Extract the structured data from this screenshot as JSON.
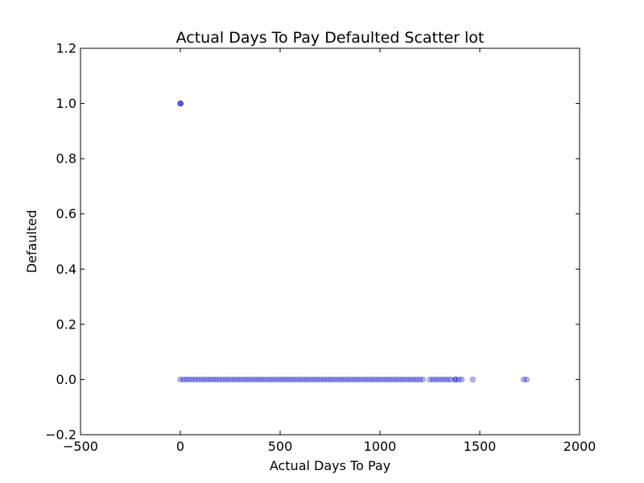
{
  "chart_data": {
    "type": "scatter",
    "title": "Actual Days To Pay Defaulted Scatter lot",
    "xlabel": "Actual Days To Pay",
    "ylabel": "Defaulted",
    "xlim": [
      -500,
      2000
    ],
    "ylim": [
      -0.2,
      1.2
    ],
    "xticks": [
      -500,
      0,
      500,
      1000,
      1500,
      2000
    ],
    "xtick_labels": [
      "−500",
      "0",
      "500",
      "1000",
      "1500",
      "2000"
    ],
    "yticks": [
      -0.2,
      0.0,
      0.2,
      0.4,
      0.6,
      0.8,
      1.0,
      1.2
    ],
    "ytick_labels": [
      "−0.2",
      "0.0",
      "0.2",
      "0.4",
      "0.6",
      "0.8",
      "1.0",
      "1.2"
    ],
    "grid": false,
    "legend": "none",
    "series": [
      {
        "marker_color": "#0000ff",
        "alpha": 0.3,
        "points": [
          {
            "x": 0,
            "y": 1
          },
          {
            "x": 1,
            "y": 1
          },
          {
            "x": 2,
            "y": 1
          },
          {
            "x": 0,
            "y": 0
          },
          {
            "x": 15,
            "y": 0
          },
          {
            "x": 30,
            "y": 0
          },
          {
            "x": 45,
            "y": 0
          },
          {
            "x": 60,
            "y": 0
          },
          {
            "x": 75,
            "y": 0
          },
          {
            "x": 90,
            "y": 0
          },
          {
            "x": 105,
            "y": 0
          },
          {
            "x": 120,
            "y": 0
          },
          {
            "x": 135,
            "y": 0
          },
          {
            "x": 150,
            "y": 0
          },
          {
            "x": 165,
            "y": 0
          },
          {
            "x": 180,
            "y": 0
          },
          {
            "x": 195,
            "y": 0
          },
          {
            "x": 210,
            "y": 0
          },
          {
            "x": 225,
            "y": 0
          },
          {
            "x": 240,
            "y": 0
          },
          {
            "x": 255,
            "y": 0
          },
          {
            "x": 270,
            "y": 0
          },
          {
            "x": 285,
            "y": 0
          },
          {
            "x": 300,
            "y": 0
          },
          {
            "x": 315,
            "y": 0
          },
          {
            "x": 330,
            "y": 0
          },
          {
            "x": 345,
            "y": 0
          },
          {
            "x": 360,
            "y": 0
          },
          {
            "x": 375,
            "y": 0
          },
          {
            "x": 390,
            "y": 0
          },
          {
            "x": 405,
            "y": 0
          },
          {
            "x": 420,
            "y": 0
          },
          {
            "x": 435,
            "y": 0
          },
          {
            "x": 450,
            "y": 0
          },
          {
            "x": 465,
            "y": 0
          },
          {
            "x": 480,
            "y": 0
          },
          {
            "x": 495,
            "y": 0
          },
          {
            "x": 510,
            "y": 0
          },
          {
            "x": 525,
            "y": 0
          },
          {
            "x": 540,
            "y": 0
          },
          {
            "x": 555,
            "y": 0
          },
          {
            "x": 570,
            "y": 0
          },
          {
            "x": 585,
            "y": 0
          },
          {
            "x": 600,
            "y": 0
          },
          {
            "x": 615,
            "y": 0
          },
          {
            "x": 630,
            "y": 0
          },
          {
            "x": 645,
            "y": 0
          },
          {
            "x": 660,
            "y": 0
          },
          {
            "x": 675,
            "y": 0
          },
          {
            "x": 690,
            "y": 0
          },
          {
            "x": 705,
            "y": 0
          },
          {
            "x": 720,
            "y": 0
          },
          {
            "x": 735,
            "y": 0
          },
          {
            "x": 750,
            "y": 0
          },
          {
            "x": 765,
            "y": 0
          },
          {
            "x": 780,
            "y": 0
          },
          {
            "x": 795,
            "y": 0
          },
          {
            "x": 810,
            "y": 0
          },
          {
            "x": 825,
            "y": 0
          },
          {
            "x": 840,
            "y": 0
          },
          {
            "x": 855,
            "y": 0
          },
          {
            "x": 870,
            "y": 0
          },
          {
            "x": 885,
            "y": 0
          },
          {
            "x": 900,
            "y": 0
          },
          {
            "x": 915,
            "y": 0
          },
          {
            "x": 930,
            "y": 0
          },
          {
            "x": 945,
            "y": 0
          },
          {
            "x": 960,
            "y": 0
          },
          {
            "x": 975,
            "y": 0
          },
          {
            "x": 990,
            "y": 0
          },
          {
            "x": 1005,
            "y": 0
          },
          {
            "x": 1020,
            "y": 0
          },
          {
            "x": 1035,
            "y": 0
          },
          {
            "x": 1050,
            "y": 0
          },
          {
            "x": 1065,
            "y": 0
          },
          {
            "x": 1080,
            "y": 0
          },
          {
            "x": 1095,
            "y": 0
          },
          {
            "x": 1110,
            "y": 0
          },
          {
            "x": 1125,
            "y": 0
          },
          {
            "x": 1140,
            "y": 0
          },
          {
            "x": 1155,
            "y": 0
          },
          {
            "x": 1170,
            "y": 0
          },
          {
            "x": 1185,
            "y": 0
          },
          {
            "x": 1200,
            "y": 0
          },
          {
            "x": 1215,
            "y": 0
          },
          {
            "x": 1250,
            "y": 0
          },
          {
            "x": 1265,
            "y": 0
          },
          {
            "x": 1280,
            "y": 0
          },
          {
            "x": 1295,
            "y": 0
          },
          {
            "x": 1310,
            "y": 0
          },
          {
            "x": 1325,
            "y": 0
          },
          {
            "x": 1340,
            "y": 0
          },
          {
            "x": 1355,
            "y": 0
          },
          {
            "x": 1375,
            "y": 0
          },
          {
            "x": 1380,
            "y": 0
          },
          {
            "x": 1395,
            "y": 0
          },
          {
            "x": 1410,
            "y": 0
          },
          {
            "x": 1465,
            "y": 0
          },
          {
            "x": 1720,
            "y": 0
          },
          {
            "x": 1735,
            "y": 0
          }
        ]
      }
    ]
  }
}
